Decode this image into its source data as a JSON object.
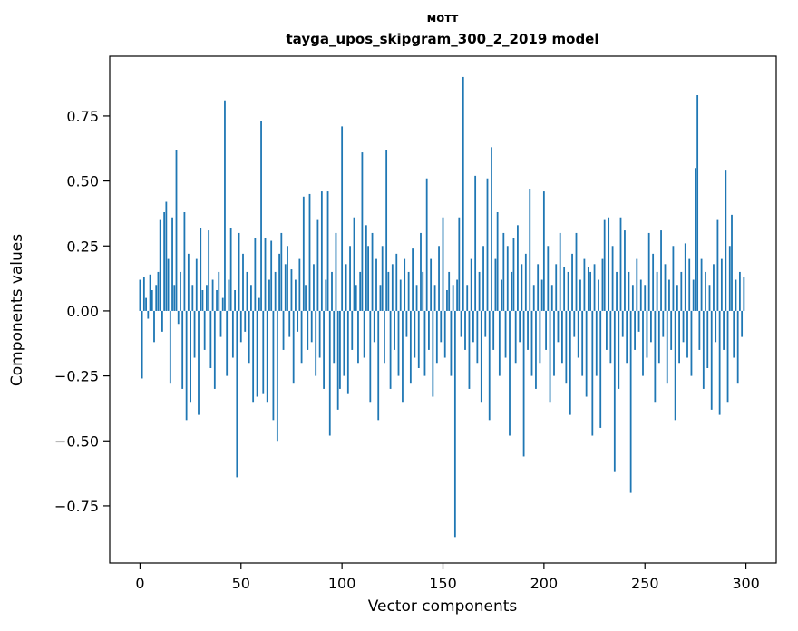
{
  "chart": {
    "suptitle": "мотт",
    "title": "tayga_upos_skipgram_300_2_2019 model",
    "xlabel": "Vector components",
    "ylabel": "Components values"
  },
  "chart_data": {
    "type": "bar",
    "title": "мотт",
    "subtitle": "tayga_upos_skipgram_300_2_2019 model",
    "xlabel": "Vector components",
    "ylabel": "Components values",
    "bar_color": "#1f77b4",
    "grid": false,
    "legend": "none",
    "xlim": [
      -15,
      315
    ],
    "ylim": [
      -0.97,
      0.98
    ],
    "xticks": [
      0,
      50,
      100,
      150,
      200,
      250,
      300
    ],
    "yticks": [
      -0.75,
      -0.5,
      -0.25,
      0,
      0.25,
      0.5,
      0.75
    ],
    "ytick_labels": [
      "−0.75",
      "−0.50",
      "−0.25",
      "0.00",
      "0.25",
      "0.50",
      "0.75"
    ],
    "x_description": "vector component index 0..299",
    "values": [
      0.12,
      -0.26,
      0.13,
      0.05,
      -0.03,
      0.14,
      0.08,
      -0.12,
      0.1,
      0.15,
      0.35,
      -0.08,
      0.38,
      0.42,
      0.2,
      -0.28,
      0.36,
      0.1,
      0.62,
      -0.05,
      0.15,
      -0.3,
      0.38,
      -0.42,
      0.22,
      -0.35,
      0.1,
      -0.18,
      0.2,
      -0.4,
      0.32,
      0.08,
      -0.15,
      0.1,
      0.31,
      -0.22,
      0.12,
      -0.3,
      0.08,
      0.15,
      -0.1,
      0.05,
      0.81,
      -0.25,
      0.12,
      0.32,
      -0.18,
      0.08,
      -0.64,
      0.3,
      -0.12,
      0.22,
      -0.08,
      0.15,
      -0.2,
      0.1,
      -0.35,
      0.28,
      -0.33,
      0.05,
      0.73,
      -0.32,
      0.28,
      -0.35,
      0.12,
      0.27,
      -0.42,
      0.15,
      -0.5,
      0.22,
      0.3,
      -0.15,
      0.18,
      0.25,
      -0.1,
      0.16,
      -0.28,
      0.12,
      -0.08,
      0.2,
      -0.2,
      0.44,
      0.1,
      -0.15,
      0.45,
      -0.12,
      0.18,
      -0.25,
      0.35,
      -0.18,
      0.46,
      -0.3,
      0.12,
      0.46,
      -0.48,
      0.15,
      -0.2,
      0.3,
      -0.38,
      -0.3,
      0.71,
      -0.25,
      0.18,
      -0.32,
      0.25,
      -0.15,
      0.36,
      0.1,
      -0.2,
      0.15,
      0.61,
      -0.18,
      0.33,
      0.25,
      -0.35,
      0.3,
      -0.12,
      0.2,
      -0.42,
      0.1,
      0.25,
      -0.2,
      0.62,
      0.15,
      -0.3,
      0.18,
      -0.15,
      0.22,
      -0.25,
      0.12,
      -0.35,
      0.2,
      -0.1,
      0.15,
      -0.28,
      0.24,
      -0.18,
      0.1,
      -0.22,
      0.3,
      0.15,
      -0.25,
      0.51,
      -0.15,
      0.2,
      -0.33,
      0.1,
      -0.2,
      0.25,
      -0.12,
      0.36,
      -0.18,
      0.08,
      0.15,
      -0.25,
      0.1,
      -0.87,
      0.12,
      0.36,
      -0.1,
      0.9,
      -0.15,
      0.1,
      -0.3,
      0.2,
      -0.12,
      0.52,
      -0.2,
      0.15,
      -0.35,
      0.25,
      -0.1,
      0.51,
      -0.42,
      0.63,
      -0.15,
      0.2,
      0.38,
      -0.25,
      0.12,
      0.3,
      -0.18,
      0.25,
      -0.48,
      0.15,
      0.28,
      -0.2,
      0.33,
      -0.12,
      0.18,
      -0.56,
      0.22,
      -0.15,
      0.47,
      -0.25,
      0.1,
      -0.3,
      0.18,
      -0.2,
      0.12,
      0.46,
      -0.15,
      0.25,
      -0.35,
      0.1,
      -0.25,
      0.18,
      -0.12,
      0.3,
      -0.2,
      0.17,
      -0.28,
      0.15,
      -0.4,
      0.22,
      -0.1,
      0.3,
      -0.18,
      0.12,
      -0.25,
      0.2,
      -0.33,
      0.17,
      0.15,
      -0.48,
      0.18,
      -0.25,
      0.12,
      -0.45,
      0.2,
      0.35,
      -0.15,
      0.36,
      -0.2,
      0.25,
      -0.62,
      0.15,
      -0.3,
      0.36,
      -0.1,
      0.31,
      -0.2,
      0.15,
      -0.7,
      0.1,
      -0.15,
      0.2,
      -0.08,
      0.12,
      -0.25,
      0.1,
      -0.18,
      0.3,
      -0.12,
      0.22,
      -0.35,
      0.15,
      -0.2,
      0.31,
      -0.1,
      0.18,
      -0.28,
      0.12,
      -0.15,
      0.25,
      -0.42,
      0.1,
      -0.2,
      0.15,
      -0.12,
      0.26,
      -0.18,
      0.2,
      -0.25,
      0.12,
      0.55,
      0.83,
      -0.15,
      0.2,
      -0.3,
      0.15,
      -0.22,
      0.1,
      -0.38,
      0.18,
      -0.12,
      0.35,
      -0.4,
      0.2,
      -0.15,
      0.54,
      -0.35,
      0.25,
      0.37,
      -0.18,
      0.12,
      -0.28,
      0.15,
      -0.1,
      0.13
    ]
  }
}
